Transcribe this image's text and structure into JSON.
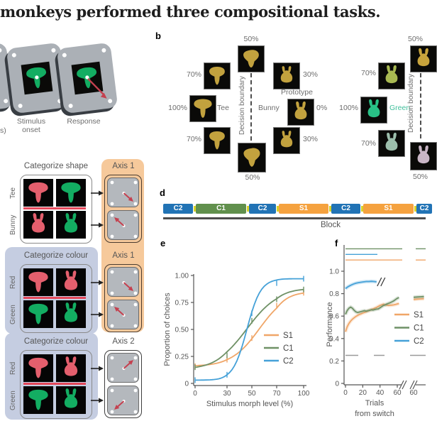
{
  "title": "monkeys performed three compositional tasks.",
  "colors": {
    "mustard": "#c2a23e",
    "green_shape": "#13ad62",
    "red_shape": "#e45f6d",
    "panel_grey": "#abb0b6",
    "screen_grey": "#b4b8bd",
    "arrow_red": "#c4404f",
    "orange_bg": "#f6c99b",
    "lavender_bg": "#c5cde1",
    "divider_red": "#e5485a",
    "s1_orange": "#f0a668",
    "c1_green": "#6f9166",
    "c2_blue": "#45a1d8",
    "block_blue": "#2173b5",
    "block_green": "#61904d",
    "block_orange": "#f5a23f",
    "connector_yellow": "#d8d229",
    "chance_grey": "#999999",
    "green_text": "#3fbf9b"
  },
  "panel_a": {
    "partial_label": "s)",
    "screens": [
      {
        "label_line1": "Stimulus",
        "label_line2": "onset",
        "shape": "tee",
        "arrow": false
      },
      {
        "label_line1": "Response",
        "label_line2": "",
        "shape": "tee",
        "arrow": true
      }
    ]
  },
  "panel_b": {
    "letter": "b",
    "decision_boundary_label": "Decision boundary",
    "shape_ring": {
      "tee_label": "Tee",
      "bunny_label": "Bunny",
      "prototype_label": "Prototype",
      "items": [
        {
          "pct": "50%",
          "shape": "mid"
        },
        {
          "pct": "70%",
          "shape": "tee70"
        },
        {
          "pct": "30%",
          "shape": "bun30"
        },
        {
          "pct": "100%",
          "shape": "tee"
        },
        {
          "pct": "0%",
          "shape": "bunny"
        },
        {
          "pct": "70%",
          "shape": "tee70"
        },
        {
          "pct": "30%",
          "shape": "bun30"
        },
        {
          "pct": "50%",
          "shape": "mid"
        }
      ]
    },
    "colour_ring": {
      "green_label": "Green",
      "items": [
        {
          "pct": "50%",
          "shape": "bunny",
          "fill": "#c8a43c"
        },
        {
          "pct": "70%",
          "shape": "bunny",
          "fill": "#a9ba52"
        },
        {
          "pct": "100%",
          "shape": "bunny",
          "fill": "#29c287"
        },
        {
          "pct": "70%",
          "shape": "bunny",
          "fill": "#9dbfac"
        },
        {
          "pct": "50%",
          "shape": "bunny",
          "fill": "#c9b6c6"
        }
      ]
    }
  },
  "panel_c": {
    "groups": [
      {
        "title": "Categorize shape",
        "axis_label": "Axis 1",
        "rows": [
          "Tee",
          "Bunny"
        ],
        "theme": "plain",
        "axis_theme": "orange",
        "cells": [
          [
            "tee:red",
            "tee:green"
          ],
          [
            "bunny:red",
            "bunny:green"
          ]
        ],
        "arrows": [
          "dr",
          "ul"
        ]
      },
      {
        "title": "Categorize colour",
        "axis_label": "Axis 1",
        "rows": [
          "Red",
          "Green"
        ],
        "theme": "lavender",
        "axis_theme": "orange",
        "cells": [
          [
            "tee:red",
            "bunny:red"
          ],
          [
            "tee:green",
            "bunny:green"
          ]
        ],
        "arrows": [
          "dr",
          "ul"
        ]
      },
      {
        "title": "Categorize colour",
        "axis_label": "Axis 2",
        "rows": [
          "Red",
          "Green"
        ],
        "theme": "lavender",
        "axis_theme": "plain",
        "cells": [
          [
            "tee:red",
            "bunny:red"
          ],
          [
            "tee:green",
            "bunny:green"
          ]
        ],
        "arrows": [
          "ur",
          "dl"
        ]
      }
    ]
  },
  "panel_d": {
    "letter": "d",
    "axis_label": "Block",
    "blocks": [
      {
        "label": "C2",
        "color": "block_blue",
        "w": 42
      },
      {
        "label": "C1",
        "color": "block_green",
        "w": 71
      },
      {
        "label": "C2",
        "color": "block_blue",
        "w": 38
      },
      {
        "label": "S1",
        "color": "block_orange",
        "w": 70
      },
      {
        "label": "C2",
        "color": "block_blue",
        "w": 41
      },
      {
        "label": "S1",
        "color": "block_orange",
        "w": 71
      },
      {
        "label": "C2",
        "color": "block_blue",
        "w": 22
      }
    ]
  },
  "chart_data": [
    {
      "id": "e",
      "type": "line",
      "letter": "e",
      "xlabel": "Stimulus morph level (%)",
      "ylabel": "Proportion of choices",
      "x_ticks": [
        0,
        30,
        50,
        70,
        100
      ],
      "y_ticks": [
        "0",
        "0.25",
        "0.50",
        "0.75",
        "1.00"
      ],
      "y_tick_vals": [
        0,
        0.25,
        0.5,
        0.75,
        1.0
      ],
      "ylim": [
        0,
        1.0
      ],
      "legend_position": "lower-right",
      "series": [
        {
          "name": "S1",
          "color": "s1_orange",
          "sigmoid": {
            "L": 0.16,
            "U": 0.85,
            "x0": 56,
            "k": 0.09
          },
          "points_x": [
            0,
            30,
            50,
            70,
            100
          ],
          "points_y": [
            0.16,
            0.22,
            0.42,
            0.72,
            0.84
          ]
        },
        {
          "name": "C1",
          "color": "c1_green",
          "sigmoid": {
            "L": 0.13,
            "U": 0.88,
            "x0": 46,
            "k": 0.08
          },
          "points_x": [
            0,
            30,
            50,
            70,
            100
          ],
          "points_y": [
            0.15,
            0.26,
            0.58,
            0.78,
            0.87
          ]
        },
        {
          "name": "C2",
          "color": "c2_blue",
          "sigmoid": {
            "L": 0.03,
            "U": 0.97,
            "x0": 46,
            "k": 0.18
          },
          "points_x": [
            0,
            30,
            50,
            70,
            100
          ],
          "points_y": [
            0.03,
            0.08,
            0.65,
            0.93,
            0.97
          ]
        }
      ]
    },
    {
      "id": "f",
      "type": "line",
      "letter": "f",
      "xlabel_line1": "Trials",
      "xlabel_line2": "from switch",
      "ylabel": "Performance",
      "x_ticks": [
        0,
        20,
        40,
        60
      ],
      "x_break_tick": 60,
      "y_ticks": [
        "0",
        "0.2",
        "0.4",
        "0.6",
        "0.8",
        "1.0"
      ],
      "y_tick_vals": [
        0,
        0.2,
        0.4,
        0.6,
        0.8,
        1.0
      ],
      "chance_level": 0.25,
      "legend_position": "right",
      "sig_lines": [
        {
          "series": "C1",
          "color": "c1_green",
          "level": 1.2,
          "post_break": true
        },
        {
          "series": "C2",
          "color": "c2_blue",
          "level": 1.15,
          "post_break": false
        },
        {
          "series": "S1",
          "color": "s1_orange",
          "level": 1.1,
          "post_break": true
        }
      ],
      "series": [
        {
          "name": "S1",
          "color": "s1_orange",
          "x": [
            0,
            2,
            4,
            6,
            8,
            10,
            12,
            14,
            16,
            18,
            20,
            22,
            24,
            26,
            28,
            30,
            32,
            34,
            36,
            38,
            40,
            42,
            44,
            46,
            48,
            50,
            52,
            54,
            56,
            58,
            60,
            62
          ],
          "y": [
            0.46,
            0.505,
            0.535,
            0.556,
            0.572,
            0.585,
            0.597,
            0.606,
            0.614,
            0.62,
            0.627,
            0.633,
            0.639,
            0.645,
            0.652,
            0.658,
            0.664,
            0.671,
            0.678,
            0.686,
            0.695,
            0.7,
            0.706,
            0.7,
            0.697,
            0.695,
            0.696,
            0.698,
            0.7,
            0.704,
            0.708,
            0.712
          ],
          "post_x": [
            60,
            64,
            68,
            72
          ],
          "post_y": [
            0.748,
            0.751,
            0.753,
            0.755
          ]
        },
        {
          "name": "C1",
          "color": "c1_green",
          "x": [
            0,
            2,
            4,
            6,
            8,
            10,
            12,
            14,
            16,
            18,
            20,
            22,
            24,
            26,
            28,
            30,
            32,
            34,
            36,
            38,
            40,
            42,
            44,
            46,
            48,
            50,
            52,
            54,
            56,
            58,
            60,
            62
          ],
          "y": [
            0.615,
            0.65,
            0.67,
            0.68,
            0.67,
            0.652,
            0.638,
            0.632,
            0.636,
            0.64,
            0.644,
            0.648,
            0.644,
            0.648,
            0.652,
            0.656,
            0.654,
            0.658,
            0.662,
            0.664,
            0.674,
            0.684,
            0.694,
            0.7,
            0.708,
            0.714,
            0.72,
            0.728,
            0.736,
            0.748,
            0.758,
            0.765
          ],
          "post_x": [
            60,
            64,
            68,
            72
          ],
          "post_y": [
            0.768,
            0.77,
            0.772,
            0.774
          ]
        },
        {
          "name": "C2",
          "color": "c2_blue",
          "x": [
            0,
            3,
            6,
            9,
            12,
            15,
            18,
            21,
            24,
            27,
            30,
            33,
            36
          ],
          "y": [
            0.845,
            0.862,
            0.875,
            0.885,
            0.893,
            0.898,
            0.902,
            0.905,
            0.908,
            0.908,
            0.91,
            0.908,
            0.905
          ],
          "ends_with_break": true
        }
      ]
    }
  ]
}
